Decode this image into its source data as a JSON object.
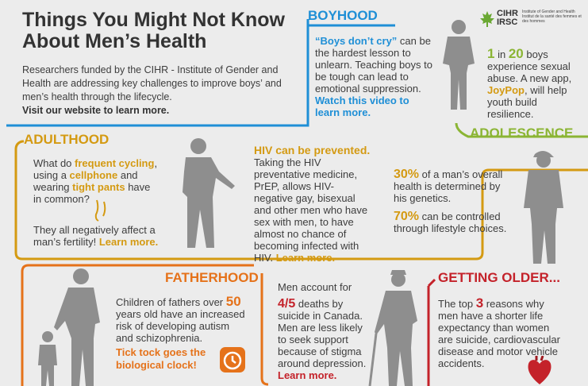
{
  "title": {
    "line1": "Things You Might Not Know",
    "line2": "About Men’s Health"
  },
  "intro": {
    "text": "Researchers funded by the CIHR - Institute of Gender and Health are addressing key challenges to improve boys’ and men’s health through the lifecycle.",
    "link": "Visit our website to learn more."
  },
  "logo": {
    "cihr": "CIHR",
    "irsc": "IRSC",
    "en": "Institute of Gender and Health",
    "fr": "Institut de la santé des femmes et des hommes"
  },
  "boyhood": {
    "heading": "BOYHOOD",
    "quote": "“Boys don’t cry”",
    "body": " can be the hardest lesson to unlearn. Teaching boys to be tough can lead to emotional suppression.",
    "link": "Watch this video to learn more."
  },
  "stat_abuse": {
    "num1": "1",
    "in": " in ",
    "num2": "20",
    "body1": " boys experience sexual abuse. A new app, ",
    "app": "JoyPop",
    "body2": ", will help youth build resilience."
  },
  "adolescence": {
    "heading": "ADOLESCENCE",
    "pct1": "30%",
    "text1": " of a man’s overall health is determined by his genetics.",
    "pct2": "70%",
    "text2": " can be controlled through lifestyle choices."
  },
  "adulthood": {
    "heading": "ADULTHOOD",
    "q1": "What do ",
    "k1": "frequent cycling",
    "q2": ", using a ",
    "k2": "cellphone",
    "q3": " and wearing ",
    "k3": "tight pants",
    "q4": " have in common?",
    "answer": "They all negatively affect a man’s fertility! ",
    "link": "Learn more."
  },
  "hiv": {
    "heading": "HIV can be prevented.",
    "body": "Taking the HIV preventative medicine, PrEP, allows HIV-negative gay, bisexual and other men who have sex with men, to have almost no chance of becoming infected with HIV. ",
    "link": "Learn more."
  },
  "fatherhood": {
    "heading": "FATHERHOOD",
    "body1": "Children of fathers over ",
    "num": "50",
    "body2": " years old have an increased risk of developing autism and schizophrenia.",
    "tick": "Tick tock goes the biological clock!"
  },
  "suicide": {
    "intro": "Men account for",
    "num": "4/5",
    "body": " deaths by suicide in Canada. Men are less likely to seek support because of stigma around depression.",
    "link": "Learn more."
  },
  "older": {
    "heading": "GETTING OLDER...",
    "body1": "The top ",
    "num": "3",
    "body2": " reasons why men have a shorter life expectancy than women are suicide, cardiovascular disease and motor vehicle accidents."
  },
  "colors": {
    "blue": "#1f8fd6",
    "green": "#8bb534",
    "gold": "#d49a12",
    "orange": "#e5721a",
    "red": "#c4222a",
    "silhouette": "#8e8e8e"
  }
}
